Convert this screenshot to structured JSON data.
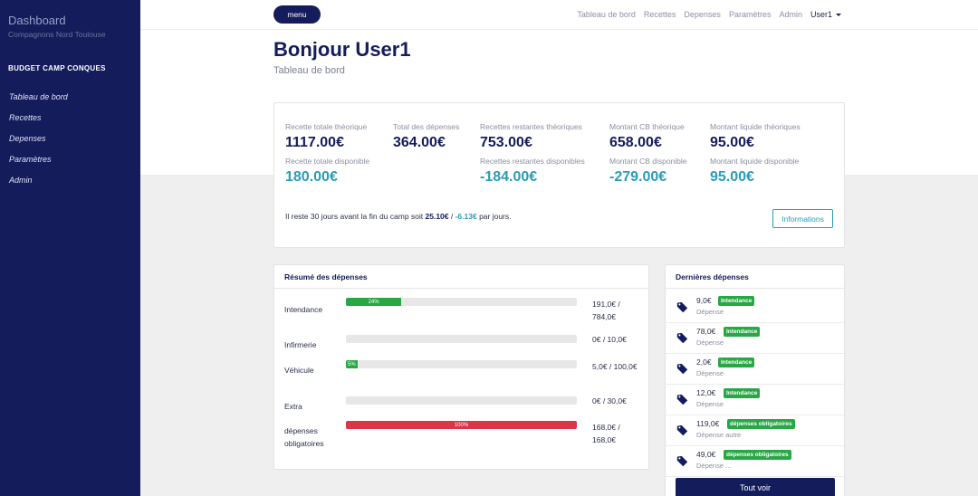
{
  "sidebar": {
    "title": "Dashboard",
    "subtitle": "Compagnons Nord Toulouse",
    "section": "BUDGET CAMP CONQUES",
    "items": [
      "Tableau de bord",
      "Recettes",
      "Depenses",
      "Paramètres",
      "Admin"
    ]
  },
  "topbar": {
    "menu_label": "menu",
    "links": [
      "Tableau de bord",
      "Recettes",
      "Depenses",
      "Paramètres",
      "Admin"
    ],
    "user": "User1"
  },
  "header": {
    "title": "Bonjour User1",
    "subtitle": "Tableau de bord"
  },
  "stats": {
    "recette_theorique_label": "Recette totale théorique",
    "recette_theorique": "1117.00€",
    "recette_disponible_label": "Recette totale disponible",
    "recette_disponible": "180.00€",
    "total_depenses_label": "Total des dépenses",
    "total_depenses": "364.00€",
    "restantes_theoriques_label": "Recettes restantes théoriques",
    "restantes_theoriques": "753.00€",
    "restantes_disponibles_label": "Recettes restantes disponibles",
    "restantes_disponibles": "-184.00€",
    "cb_theorique_label": "Montant CB théorique",
    "cb_theorique": "658.00€",
    "cb_disponible_label": "Montant CB disponible",
    "cb_disponible": "-279.00€",
    "liquide_theoriques_label": "Montant liquide théoriques",
    "liquide_theoriques": "95.00€",
    "liquide_disponible_label": "Montant liquide disponible",
    "liquide_disponible": "95.00€",
    "days_prefix": "Il reste 30 jours avant la fin du camp soit ",
    "per_day_theorique": "25.10€",
    "days_sep": " / ",
    "per_day_disponible": "-6.13€",
    "days_suffix": " par jours.",
    "info_button": "Informations"
  },
  "summary": {
    "title": "Résumé des dépenses",
    "rows": [
      {
        "label": "Intendance",
        "amount": "191,0€ / 784,0€",
        "percent": 24,
        "percent_label": "24%",
        "color": "#28a745"
      },
      {
        "label": "Infirmerie",
        "amount": "0€ / 10,0€",
        "percent": 0,
        "percent_label": "",
        "color": "#28a745"
      },
      {
        "label": "Véhicule",
        "amount": "5,0€ / 100,0€",
        "percent": 5,
        "percent_label": "5%",
        "color": "#28a745"
      },
      {
        "label": "Extra",
        "amount": "0€ / 30,0€",
        "percent": 0,
        "percent_label": "",
        "color": "#28a745"
      },
      {
        "label": "dépenses obligatoires",
        "amount": "168,0€ / 168,0€",
        "percent": 100,
        "percent_label": "100%",
        "color": "#dc3545"
      }
    ]
  },
  "recent": {
    "title": "Dernières dépenses",
    "items": [
      {
        "amount": "9,0€",
        "badge": "Intendance",
        "desc": "Dépense"
      },
      {
        "amount": "78,0€",
        "badge": "Intendance",
        "desc": "Dépense"
      },
      {
        "amount": "2,0€",
        "badge": "Intendance",
        "desc": "Dépense"
      },
      {
        "amount": "12,0€",
        "badge": "Intendance",
        "desc": "Dépense"
      },
      {
        "amount": "119,0€",
        "badge": "dépenses obligatoires",
        "desc": "Dépense autre"
      },
      {
        "amount": "49,0€",
        "badge": "dépenses obligatoires",
        "desc": "Dépense ..."
      }
    ],
    "see_all": "Tout voir"
  }
}
